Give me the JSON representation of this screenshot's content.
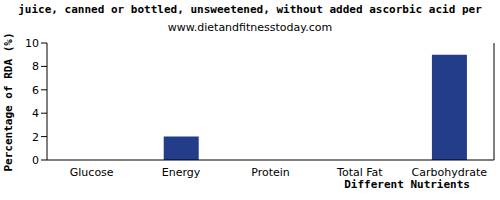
{
  "chart_data": {
    "type": "bar",
    "title": "juice, canned or bottled, unsweetened, without added ascorbic acid per",
    "subtitle": "www.dietandfitnesstoday.com",
    "x_label": "Different Nutrients",
    "y_label": "Percentage of RDA (%)",
    "categories": [
      "Glucose",
      "Energy",
      "Protein",
      "Total Fat",
      "Carbohydrate"
    ],
    "values": [
      0,
      2,
      0,
      0,
      9
    ],
    "color": "#233d8b",
    "ylim": [
      0,
      10
    ],
    "yticks": [
      0,
      2,
      4,
      6,
      8,
      10
    ],
    "grid": false
  }
}
